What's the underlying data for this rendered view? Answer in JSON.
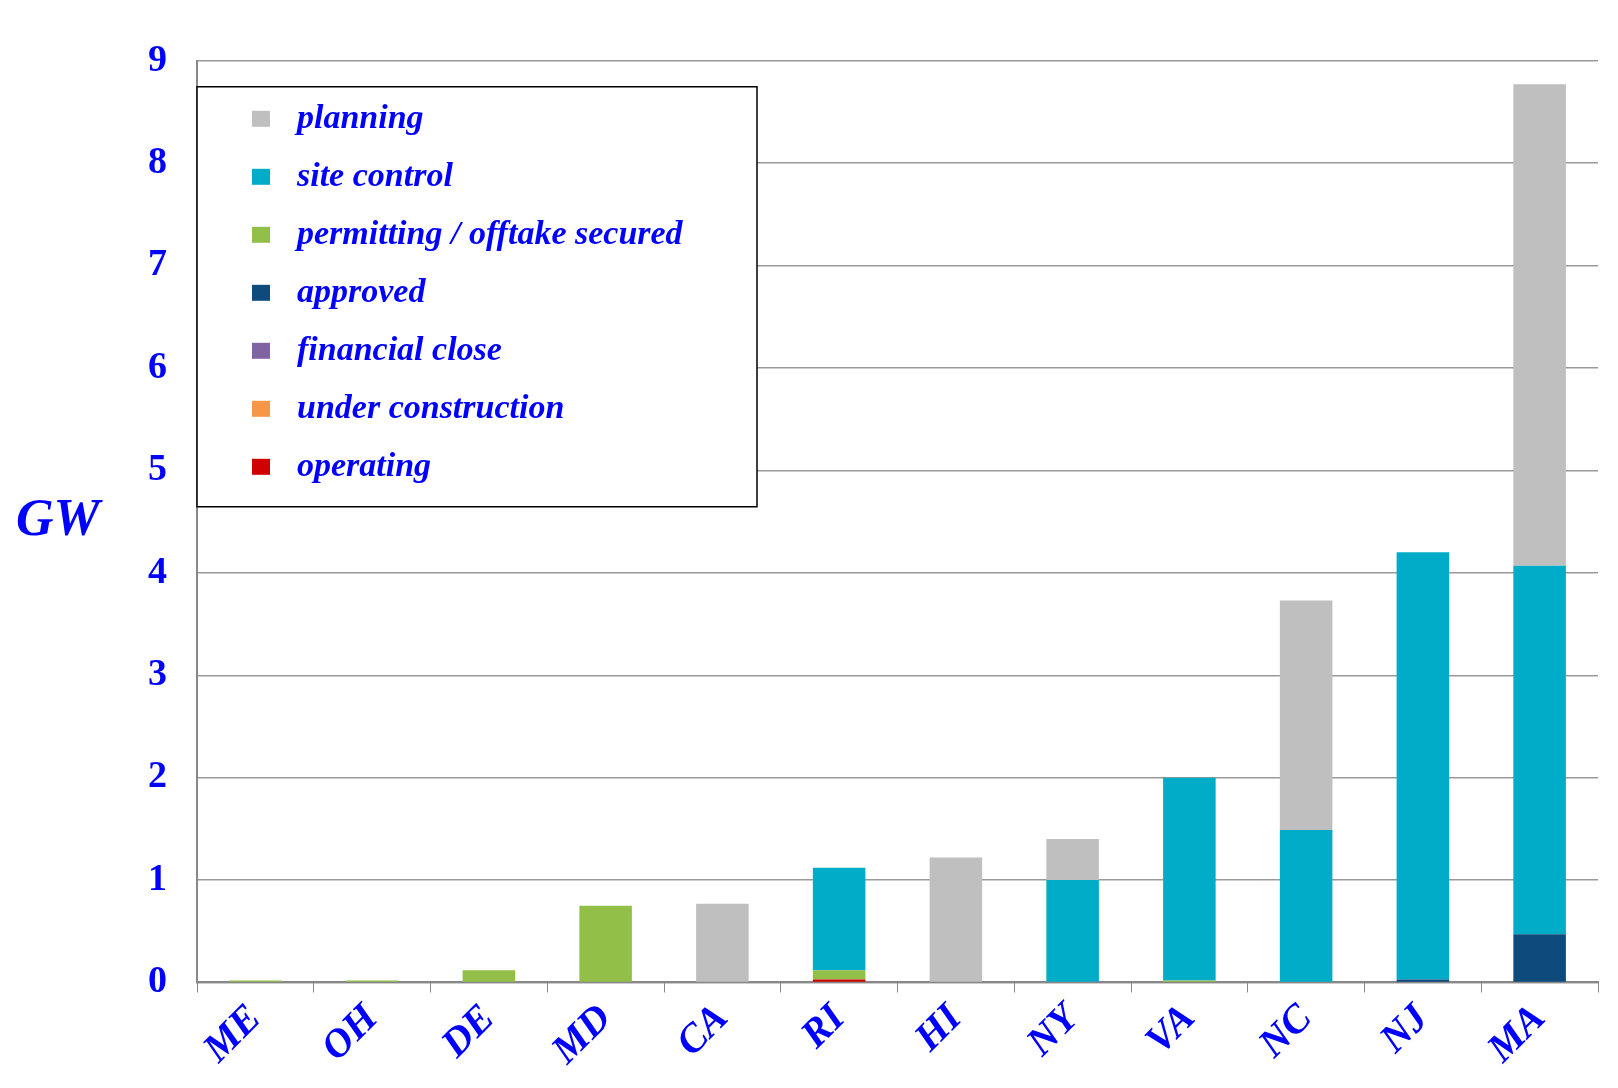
{
  "chart_data": {
    "type": "bar",
    "ylabel": "GW",
    "categories": [
      "ME",
      "OH",
      "DE",
      "MD",
      "CA",
      "RI",
      "HI",
      "NY",
      "VA",
      "NC",
      "NJ",
      "MA"
    ],
    "series": [
      {
        "name": "operating",
        "color": "#d00000",
        "values": [
          0,
          0,
          0,
          0,
          0,
          0.03,
          0,
          0,
          0,
          0,
          0,
          0
        ]
      },
      {
        "name": "under construction",
        "color": "#f79646",
        "values": [
          0,
          0,
          0,
          0,
          0,
          0,
          0,
          0,
          0,
          0,
          0,
          0
        ]
      },
      {
        "name": "financial close",
        "color": "#8064a2",
        "values": [
          0,
          0,
          0,
          0,
          0,
          0,
          0,
          0,
          0,
          0,
          0,
          0
        ]
      },
      {
        "name": "approved",
        "color": "#0f4a7c",
        "values": [
          0,
          0,
          0,
          0,
          0,
          0,
          0,
          0,
          0,
          0,
          0.03,
          0.47
        ]
      },
      {
        "name": "permitting / offtake secured",
        "color": "#92bf48",
        "values": [
          0.02,
          0.02,
          0.12,
          0.75,
          0,
          0.09,
          0,
          0,
          0.02,
          0,
          0,
          0
        ]
      },
      {
        "name": "site control",
        "color": "#00acc8",
        "values": [
          0,
          0,
          0,
          0,
          0,
          1.0,
          0,
          1.0,
          1.98,
          1.49,
          4.17,
          3.6
        ]
      },
      {
        "name": "planning",
        "color": "#bfbfbf",
        "values": [
          0,
          0,
          0,
          0,
          0.77,
          0,
          1.22,
          0.4,
          0,
          2.24,
          0,
          4.7
        ]
      }
    ],
    "stacked": true,
    "ylim": [
      0,
      9
    ],
    "yticks": [
      0,
      1,
      2,
      3,
      4,
      5,
      6,
      7,
      8,
      9
    ],
    "grid": "y",
    "legend": "top left"
  }
}
